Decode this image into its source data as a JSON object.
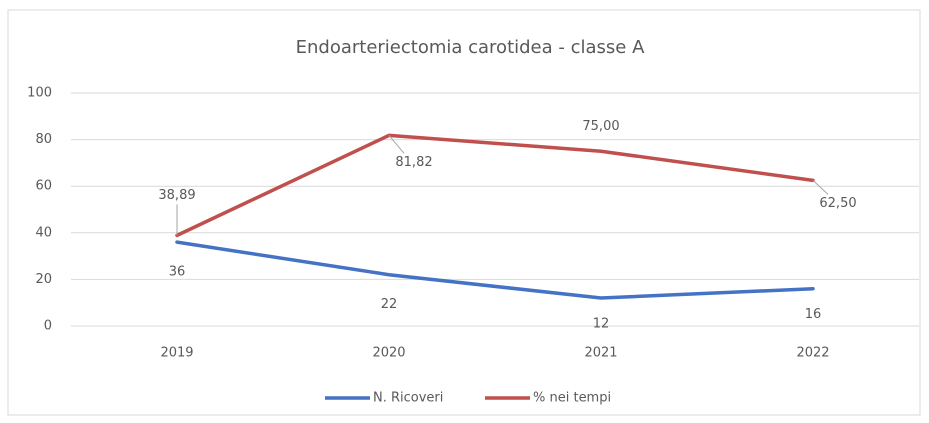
{
  "chart_data": {
    "type": "line",
    "title": "Endoarteriectomia carotidea - classe A",
    "categories": [
      "2019",
      "2020",
      "2021",
      "2022"
    ],
    "series": [
      {
        "name": "N. Ricoveri",
        "color": "#4472c4",
        "values": [
          36,
          22,
          12,
          16
        ]
      },
      {
        "name": "% nei tempi",
        "color": "#c0504d",
        "values": [
          38.89,
          81.82,
          75,
          62.5
        ],
        "value_labels": [
          "38,89",
          "81,82",
          "75,00",
          "62,50"
        ]
      }
    ],
    "ylim": [
      0,
      100
    ],
    "yticks": [
      0,
      20,
      40,
      60,
      80,
      100
    ],
    "grid": true,
    "legend": "bottom"
  }
}
